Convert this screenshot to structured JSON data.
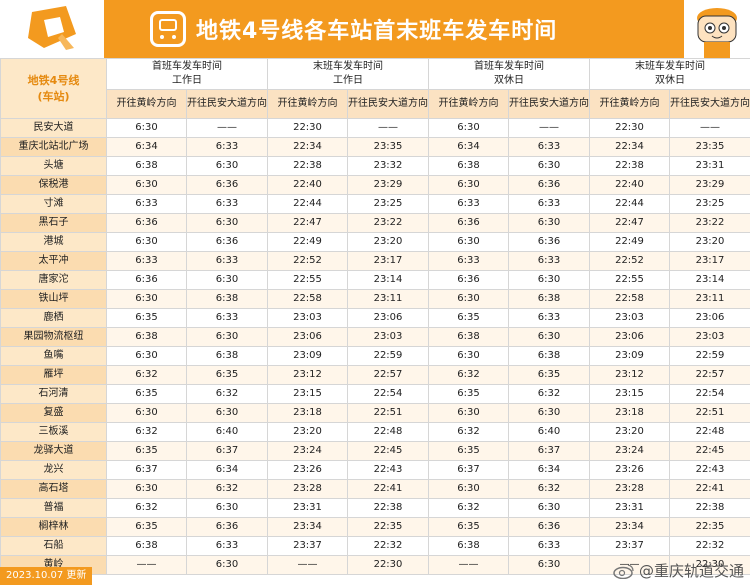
{
  "header": {
    "title": "地铁4号线各车站首末班车发车时间",
    "logo_icon": "chongqing-rail-logo-icon",
    "train_icon": "metro-train-icon",
    "mascot_icon": "cartoon-mascot-icon",
    "accent": "#f39a1f"
  },
  "table": {
    "line_label_1": "地铁4号线",
    "line_label_2": "(车站)",
    "groups": [
      {
        "l1": "首班车发车时间",
        "l2": "工作日"
      },
      {
        "l1": "末班车发车时间",
        "l2": "工作日"
      },
      {
        "l1": "首班车发车时间",
        "l2": "双休日"
      },
      {
        "l1": "末班车发车时间",
        "l2": "双休日"
      }
    ],
    "dir_a": "开往黄岭方向",
    "dir_b": "开往民安大道方向",
    "rows": [
      {
        "station": "民安大道",
        "v": [
          "6:30",
          "——",
          "22:30",
          "——",
          "6:30",
          "——",
          "22:30",
          "——"
        ]
      },
      {
        "station": "重庆北站北广场",
        "v": [
          "6:34",
          "6:33",
          "22:34",
          "23:35",
          "6:34",
          "6:33",
          "22:34",
          "23:35"
        ]
      },
      {
        "station": "头塘",
        "v": [
          "6:38",
          "6:30",
          "22:38",
          "23:32",
          "6:38",
          "6:30",
          "22:38",
          "23:31"
        ]
      },
      {
        "station": "保税港",
        "v": [
          "6:30",
          "6:36",
          "22:40",
          "23:29",
          "6:30",
          "6:36",
          "22:40",
          "23:29"
        ]
      },
      {
        "station": "寸滩",
        "v": [
          "6:33",
          "6:33",
          "22:44",
          "23:25",
          "6:33",
          "6:33",
          "22:44",
          "23:25"
        ]
      },
      {
        "station": "黑石子",
        "v": [
          "6:36",
          "6:30",
          "22:47",
          "23:22",
          "6:36",
          "6:30",
          "22:47",
          "23:22"
        ]
      },
      {
        "station": "港城",
        "v": [
          "6:30",
          "6:36",
          "22:49",
          "23:20",
          "6:30",
          "6:36",
          "22:49",
          "23:20"
        ]
      },
      {
        "station": "太平冲",
        "v": [
          "6:33",
          "6:33",
          "22:52",
          "23:17",
          "6:33",
          "6:33",
          "22:52",
          "23:17"
        ]
      },
      {
        "station": "唐家沱",
        "v": [
          "6:36",
          "6:30",
          "22:55",
          "23:14",
          "6:36",
          "6:30",
          "22:55",
          "23:14"
        ]
      },
      {
        "station": "铁山坪",
        "v": [
          "6:30",
          "6:38",
          "22:58",
          "23:11",
          "6:30",
          "6:38",
          "22:58",
          "23:11"
        ]
      },
      {
        "station": "鹿栖",
        "v": [
          "6:35",
          "6:33",
          "23:03",
          "23:06",
          "6:35",
          "6:33",
          "23:03",
          "23:06"
        ]
      },
      {
        "station": "果园物流枢纽",
        "v": [
          "6:38",
          "6:30",
          "23:06",
          "23:03",
          "6:38",
          "6:30",
          "23:06",
          "23:03"
        ]
      },
      {
        "station": "鱼嘴",
        "v": [
          "6:30",
          "6:38",
          "23:09",
          "22:59",
          "6:30",
          "6:38",
          "23:09",
          "22:59"
        ]
      },
      {
        "station": "雁坪",
        "v": [
          "6:32",
          "6:35",
          "23:12",
          "22:57",
          "6:32",
          "6:35",
          "23:12",
          "22:57"
        ]
      },
      {
        "station": "石河清",
        "v": [
          "6:35",
          "6:32",
          "23:15",
          "22:54",
          "6:35",
          "6:32",
          "23:15",
          "22:54"
        ]
      },
      {
        "station": "复盛",
        "v": [
          "6:30",
          "6:30",
          "23:18",
          "22:51",
          "6:30",
          "6:30",
          "23:18",
          "22:51"
        ]
      },
      {
        "station": "三板溪",
        "v": [
          "6:32",
          "6:40",
          "23:20",
          "22:48",
          "6:32",
          "6:40",
          "23:20",
          "22:48"
        ]
      },
      {
        "station": "龙驿大道",
        "v": [
          "6:35",
          "6:37",
          "23:24",
          "22:45",
          "6:35",
          "6:37",
          "23:24",
          "22:45"
        ]
      },
      {
        "station": "龙兴",
        "v": [
          "6:37",
          "6:34",
          "23:26",
          "22:43",
          "6:37",
          "6:34",
          "23:26",
          "22:43"
        ]
      },
      {
        "station": "高石塔",
        "v": [
          "6:30",
          "6:32",
          "23:28",
          "22:41",
          "6:30",
          "6:32",
          "23:28",
          "22:41"
        ]
      },
      {
        "station": "普福",
        "v": [
          "6:32",
          "6:30",
          "23:31",
          "22:38",
          "6:32",
          "6:30",
          "23:31",
          "22:38"
        ]
      },
      {
        "station": "榈梓林",
        "v": [
          "6:35",
          "6:36",
          "23:34",
          "22:35",
          "6:35",
          "6:36",
          "23:34",
          "22:35"
        ]
      },
      {
        "station": "石船",
        "v": [
          "6:38",
          "6:33",
          "23:37",
          "22:32",
          "6:38",
          "6:33",
          "23:37",
          "22:32"
        ]
      },
      {
        "station": "黄岭",
        "v": [
          "——",
          "6:30",
          "——",
          "22:30",
          "——",
          "6:30",
          "——",
          "22:30"
        ]
      }
    ]
  },
  "footer": {
    "date": "2023.10.07 更新",
    "watermark": "@重庆轨道交通",
    "watermark_icon": "weibo-icon"
  }
}
